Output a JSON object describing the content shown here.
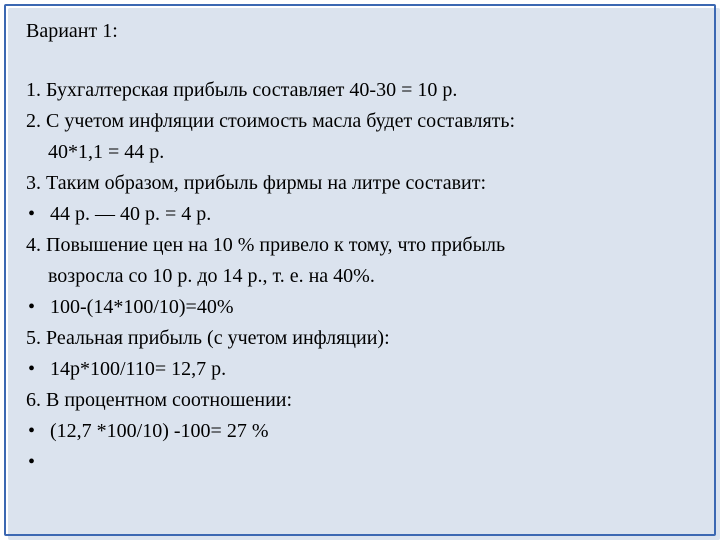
{
  "colors": {
    "frame_border": "#3c68b2",
    "frame_shadow": "#dbe3ee",
    "text": "#000000",
    "background": "#ffffff"
  },
  "typography": {
    "font_family": "Times New Roman",
    "font_size_pt": 15,
    "line_height": 1.55
  },
  "heading": "Вариант 1:",
  "lines": {
    "l1": "1. Бухгалтерская прибыль составляет 40-30 = 10 р.",
    "l2a": "2. С учетом инфляции стоимость масла будет составлять:",
    "l2b": "40*1,1 = 44 р.",
    "l3": "3. Таким образом, прибыль фирмы на литре составит:",
    "b3": "44 р. — 40 р. = 4 р.",
    "l4a": "4. Повышение цен на 10 % привело к тому, что прибыль",
    "l4b": "возросла со 10 р. до 14 р., т. е. на 40%.",
    "b4": "100-(14*100/10)=40%",
    "l5": "5. Реальная прибыль (с учетом инфляции):",
    "b5": "14р*100/110= 12,7 р.",
    "l6": "6. В процентном соотношении:",
    "b6": " (12,7 *100/10) -100= 27 %"
  },
  "bullet_char": "•"
}
